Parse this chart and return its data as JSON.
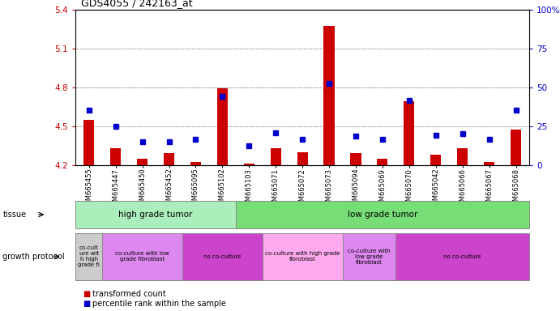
{
  "title": "GDS4055 / 242163_at",
  "samples": [
    "GSM665455",
    "GSM665447",
    "GSM665450",
    "GSM665452",
    "GSM665095",
    "GSM665102",
    "GSM665103",
    "GSM665071",
    "GSM665072",
    "GSM665073",
    "GSM665094",
    "GSM665069",
    "GSM665070",
    "GSM665042",
    "GSM665066",
    "GSM665067",
    "GSM665068"
  ],
  "transformed_count": [
    4.55,
    4.33,
    4.25,
    4.29,
    4.22,
    4.79,
    4.21,
    4.33,
    4.3,
    5.27,
    4.29,
    4.25,
    4.69,
    4.28,
    4.33,
    4.22,
    4.47
  ],
  "percentile_rank": [
    4.62,
    4.5,
    4.38,
    4.38,
    4.4,
    4.73,
    4.35,
    4.45,
    4.4,
    4.83,
    4.42,
    4.4,
    4.7,
    4.43,
    4.44,
    4.4,
    4.62
  ],
  "ylim_left": [
    4.2,
    5.4
  ],
  "yticks_left": [
    4.2,
    4.5,
    4.8,
    5.1,
    5.4
  ],
  "yticks_right": [
    0,
    25,
    50,
    75,
    100
  ],
  "bar_color": "#cc0000",
  "dot_color": "#0000cc",
  "tissue_groups": [
    {
      "label": "high grade tumor",
      "start": 0,
      "end": 6,
      "color": "#99ee99"
    },
    {
      "label": "low grade tumor",
      "start": 6,
      "end": 17,
      "color": "#55dd55"
    }
  ],
  "growth_groups": [
    {
      "label": "co-cult\nure wit\nh high\ngrade fi",
      "start": 0,
      "end": 1,
      "color": "#dddddd"
    },
    {
      "label": "co-culture with low\ngrade fibroblast",
      "start": 1,
      "end": 4,
      "color": "#dd77dd"
    },
    {
      "label": "no co-culture",
      "start": 4,
      "end": 7,
      "color": "#cc55cc"
    },
    {
      "label": "co-culture with high grade\nfibroblast",
      "start": 7,
      "end": 10,
      "color": "#ffaaee"
    },
    {
      "label": "co-culture with\nlow grade\nfibroblast",
      "start": 10,
      "end": 12,
      "color": "#dd77dd"
    },
    {
      "label": "no co-culture",
      "start": 12,
      "end": 17,
      "color": "#cc55cc"
    }
  ],
  "legend_items": [
    {
      "label": "transformed count",
      "color": "#cc0000"
    },
    {
      "label": "percentile rank within the sample",
      "color": "#0000cc"
    }
  ],
  "ylabel_left_color": "#cc0000",
  "ylabel_right_color": "#0000cc",
  "baseline": 4.2
}
